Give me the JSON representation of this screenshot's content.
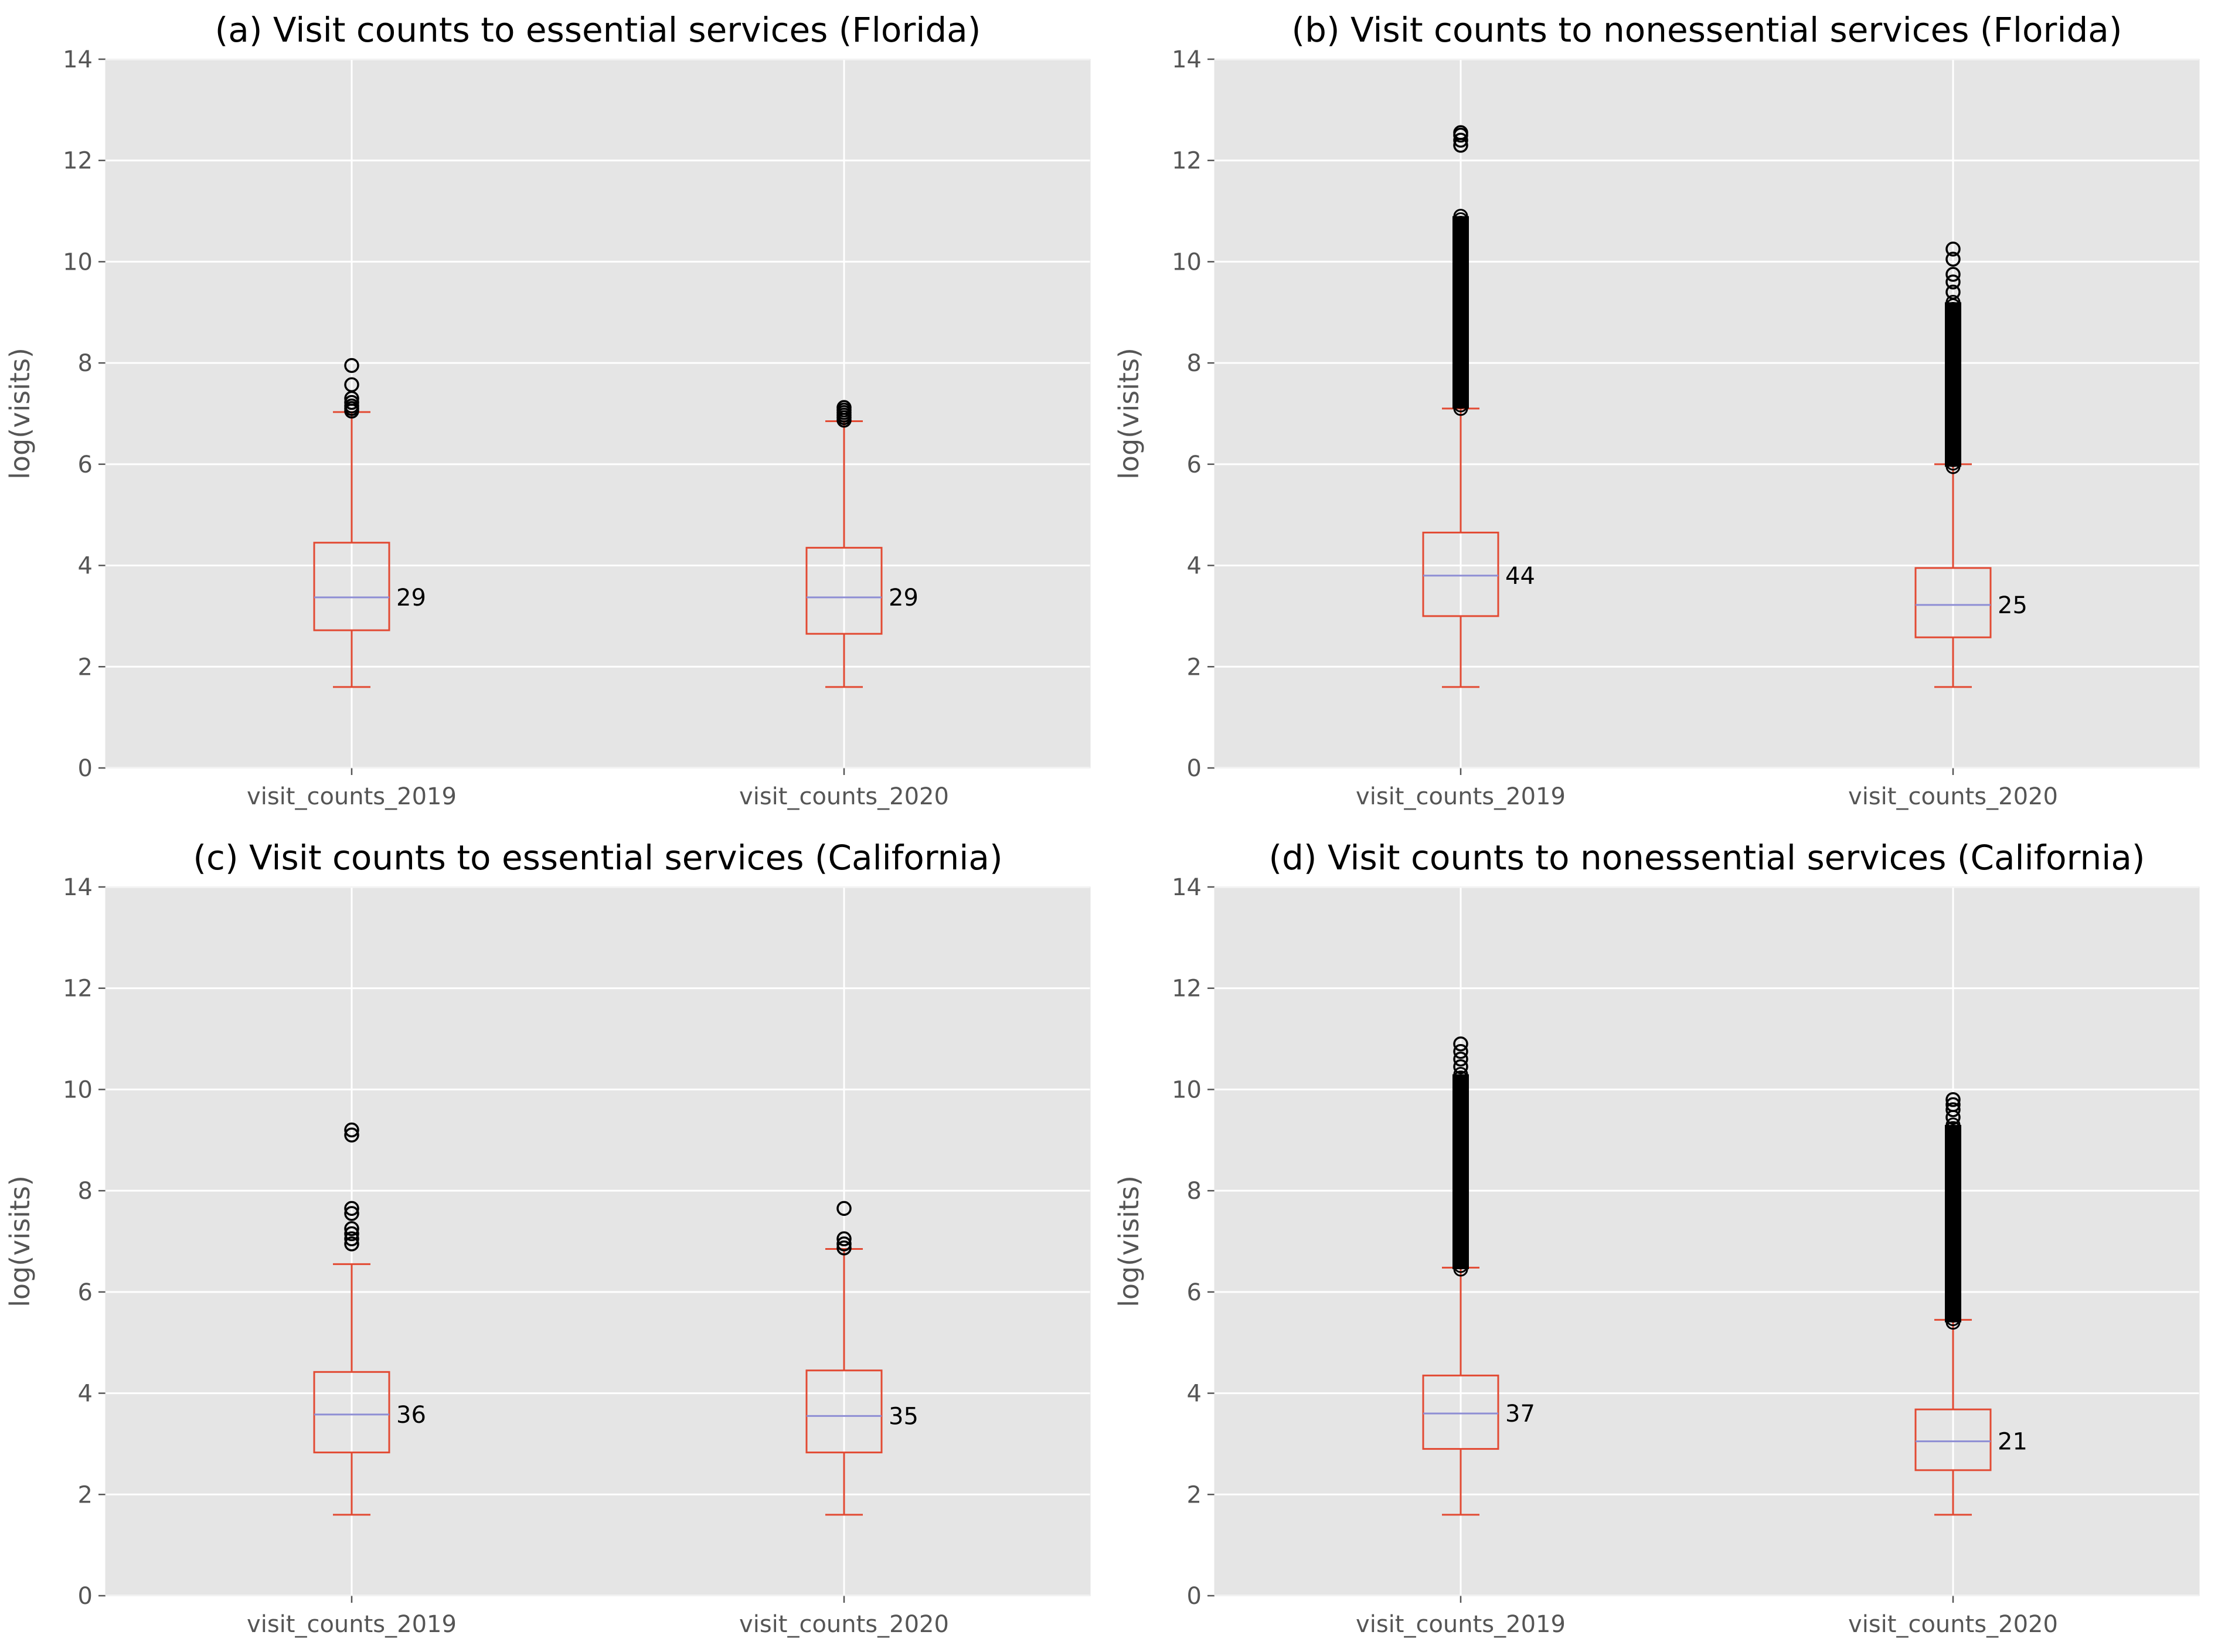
{
  "chart_data": [
    {
      "type": "box",
      "title": "(a) Visit counts to essential services (Florida)",
      "ylabel": "log(visits)",
      "ylim": [
        0,
        14
      ],
      "yticks": [
        0,
        2,
        4,
        6,
        8,
        10,
        12,
        14
      ],
      "grid": true,
      "categories": [
        "visit_counts_2019",
        "visit_counts_2020"
      ],
      "boxes": [
        {
          "whislo": 1.6,
          "q1": 2.72,
          "med": 3.37,
          "q3": 4.45,
          "whishi": 7.03,
          "median_label": "29",
          "fliers": [
            7.05,
            7.1,
            7.15,
            7.22,
            7.3,
            7.57,
            7.95
          ]
        },
        {
          "whislo": 1.6,
          "q1": 2.65,
          "med": 3.37,
          "q3": 4.35,
          "whishi": 6.85,
          "median_label": "29",
          "fliers": [
            6.87,
            6.92,
            6.97,
            7.02,
            7.07,
            7.12
          ]
        }
      ]
    },
    {
      "type": "box",
      "title": "(b) Visit counts to nonessential services (Florida)",
      "ylabel": "log(visits)",
      "ylim": [
        0,
        14
      ],
      "yticks": [
        0,
        2,
        4,
        6,
        8,
        10,
        12,
        14
      ],
      "grid": true,
      "categories": [
        "visit_counts_2019",
        "visit_counts_2020"
      ],
      "boxes": [
        {
          "whislo": 1.6,
          "q1": 3.0,
          "med": 3.8,
          "q3": 4.65,
          "whishi": 7.1,
          "median_label": "44",
          "flier_band": [
            7.1,
            10.9
          ],
          "fliers": [
            12.3,
            12.4,
            12.5,
            12.55
          ]
        },
        {
          "whislo": 1.6,
          "q1": 2.58,
          "med": 3.22,
          "q3": 3.95,
          "whishi": 6.0,
          "median_label": "25",
          "flier_band": [
            5.95,
            9.2
          ],
          "fliers": [
            9.4,
            9.6,
            9.75,
            10.05,
            10.25
          ]
        }
      ]
    },
    {
      "type": "box",
      "title": "(c) Visit counts to essential services (California)",
      "ylabel": "log(visits)",
      "ylim": [
        0,
        14
      ],
      "yticks": [
        0,
        2,
        4,
        6,
        8,
        10,
        12,
        14
      ],
      "grid": true,
      "categories": [
        "visit_counts_2019",
        "visit_counts_2020"
      ],
      "boxes": [
        {
          "whislo": 1.6,
          "q1": 2.83,
          "med": 3.58,
          "q3": 4.42,
          "whishi": 6.55,
          "median_label": "36",
          "fliers": [
            6.95,
            7.05,
            7.15,
            7.25,
            7.55,
            7.65,
            9.1,
            9.2
          ]
        },
        {
          "whislo": 1.6,
          "q1": 2.83,
          "med": 3.55,
          "q3": 4.45,
          "whishi": 6.85,
          "median_label": "35",
          "fliers": [
            6.87,
            6.95,
            7.05,
            7.65
          ]
        }
      ]
    },
    {
      "type": "box",
      "title": "(d) Visit counts to nonessential services (California)",
      "ylabel": "log(visits)",
      "ylim": [
        0,
        14
      ],
      "yticks": [
        0,
        2,
        4,
        6,
        8,
        10,
        12,
        14
      ],
      "grid": true,
      "categories": [
        "visit_counts_2019",
        "visit_counts_2020"
      ],
      "boxes": [
        {
          "whislo": 1.6,
          "q1": 2.9,
          "med": 3.6,
          "q3": 4.35,
          "whishi": 6.48,
          "median_label": "37",
          "flier_band": [
            6.45,
            10.3
          ],
          "fliers": [
            10.45,
            10.6,
            10.75,
            10.9
          ]
        },
        {
          "whislo": 1.6,
          "q1": 2.48,
          "med": 3.05,
          "q3": 3.68,
          "whishi": 5.45,
          "median_label": "21",
          "flier_band": [
            5.4,
            9.3
          ],
          "fliers": [
            9.45,
            9.6,
            9.7,
            9.8
          ]
        }
      ]
    }
  ],
  "colors": {
    "plot_background": "#e5e5e5",
    "grid": "#ffffff",
    "box": "#e24a33",
    "median": "#8e8ed4",
    "flier": "#000000",
    "tick_text": "#555555"
  }
}
